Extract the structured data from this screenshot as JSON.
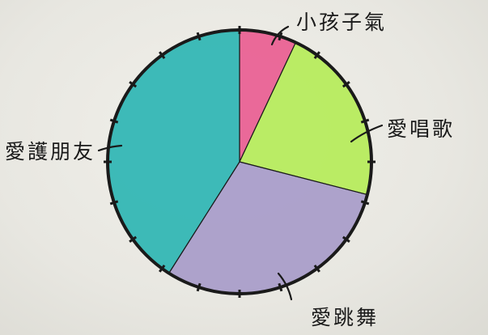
{
  "chart_data": {
    "type": "pie",
    "title": "",
    "slices": [
      {
        "label": "小孩子氣",
        "value": 7,
        "color": "#ea5f92"
      },
      {
        "label": "愛唱歌",
        "value": 22,
        "color": "#b6ec5a"
      },
      {
        "label": "愛跳舞",
        "value": 30,
        "color": "#a89cc9"
      },
      {
        "label": "愛護朋友",
        "value": 41,
        "color": "#2fb6b4"
      }
    ],
    "start_angle_degrees": 0,
    "direction": "clockwise",
    "outline_color": "#1a1a1a",
    "tick_marks": 20
  }
}
